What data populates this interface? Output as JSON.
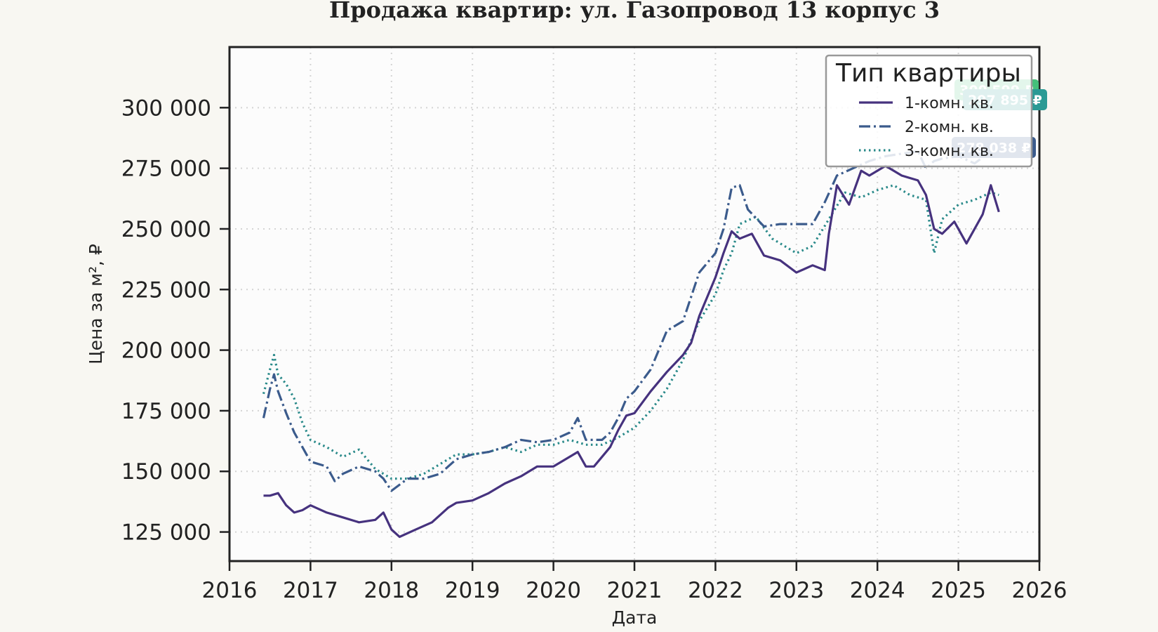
{
  "chart_data": {
    "type": "line",
    "title": "Продажа квартир: ул. Газопровод 13 корпус 3",
    "xlabel": "Дата",
    "ylabel": "Цена за м², ₽",
    "xlim": [
      2016,
      2026
    ],
    "ylim": [
      113000,
      325000
    ],
    "x_ticks": [
      2016,
      2017,
      2018,
      2019,
      2020,
      2021,
      2022,
      2023,
      2024,
      2025,
      2026
    ],
    "x_tick_labels": [
      "2016",
      "2017",
      "2018",
      "2019",
      "2020",
      "2021",
      "2022",
      "2023",
      "2024",
      "2025",
      "2026"
    ],
    "y_ticks": [
      125000,
      150000,
      175000,
      200000,
      225000,
      250000,
      275000,
      300000
    ],
    "y_tick_labels": [
      "125 000",
      "150 000",
      "175 000",
      "200 000",
      "225 000",
      "250 000",
      "275 000",
      "300 000"
    ],
    "grid": true,
    "legend": {
      "title": "Тип квартиры",
      "placement": "top-right"
    },
    "series": [
      {
        "name": "1-комн. кв.",
        "color": "#46327e",
        "style": "solid",
        "x": [
          2016.42,
          2016.5,
          2016.6,
          2016.7,
          2016.8,
          2016.9,
          2017.0,
          2017.2,
          2017.4,
          2017.6,
          2017.8,
          2017.9,
          2018.0,
          2018.1,
          2018.3,
          2018.5,
          2018.7,
          2018.8,
          2019.0,
          2019.2,
          2019.4,
          2019.6,
          2019.8,
          2020.0,
          2020.2,
          2020.3,
          2020.4,
          2020.5,
          2020.7,
          2020.8,
          2020.9,
          2021.0,
          2021.2,
          2021.4,
          2021.6,
          2021.7,
          2021.8,
          2022.0,
          2022.1,
          2022.2,
          2022.3,
          2022.45,
          2022.6,
          2022.8,
          2023.0,
          2023.2,
          2023.35,
          2023.4,
          2023.5,
          2023.65,
          2023.8,
          2023.9,
          2024.1,
          2024.3,
          2024.5,
          2024.6,
          2024.7,
          2024.8,
          2024.95,
          2025.1,
          2025.3,
          2025.4,
          2025.5
        ],
        "y": [
          140000,
          140000,
          141000,
          136000,
          133000,
          134000,
          136000,
          133000,
          131000,
          129000,
          130000,
          133000,
          126000,
          123000,
          126000,
          129000,
          135000,
          137000,
          138000,
          141000,
          145000,
          148000,
          152000,
          152000,
          156000,
          158000,
          152000,
          152000,
          160000,
          167000,
          173000,
          174000,
          183000,
          191000,
          198000,
          203000,
          214000,
          230000,
          240000,
          249000,
          246000,
          248000,
          239000,
          237000,
          232000,
          235000,
          233000,
          248000,
          268000,
          260000,
          274000,
          272000,
          276000,
          272000,
          270000,
          264000,
          250000,
          248000,
          253000,
          244000,
          256000,
          268000,
          257000
        ]
      },
      {
        "name": "2-комн. кв.",
        "color": "#3b5b8c",
        "style": "dashdot",
        "x": [
          2016.42,
          2016.5,
          2016.55,
          2016.6,
          2016.7,
          2016.8,
          2016.9,
          2017.0,
          2017.2,
          2017.3,
          2017.4,
          2017.6,
          2017.8,
          2017.9,
          2018.0,
          2018.2,
          2018.4,
          2018.6,
          2018.8,
          2019.0,
          2019.2,
          2019.4,
          2019.6,
          2019.8,
          2020.0,
          2020.2,
          2020.3,
          2020.4,
          2020.6,
          2020.7,
          2020.8,
          2020.9,
          2021.0,
          2021.2,
          2021.4,
          2021.6,
          2021.7,
          2021.8,
          2022.0,
          2022.1,
          2022.2,
          2022.3,
          2022.4,
          2022.6,
          2022.8,
          2023.0,
          2023.2,
          2023.35,
          2023.5,
          2023.7,
          2023.9,
          2024.1,
          2024.3,
          2024.5,
          2024.6,
          2024.7,
          2024.8,
          2025.0,
          2025.2,
          2025.4,
          2025.5
        ],
        "y": [
          172000,
          184000,
          190000,
          183000,
          174000,
          166000,
          160000,
          154000,
          152000,
          146000,
          149000,
          152000,
          150000,
          147000,
          142000,
          147000,
          147000,
          149000,
          155000,
          157000,
          158000,
          160000,
          163000,
          162000,
          163000,
          166000,
          172000,
          163000,
          163000,
          166000,
          172000,
          180000,
          183000,
          192000,
          208000,
          212000,
          222000,
          232000,
          240000,
          250000,
          267000,
          268000,
          258000,
          251000,
          252000,
          252000,
          252000,
          261000,
          272000,
          275000,
          278000,
          280000,
          281000,
          282000,
          275000,
          278000,
          279000,
          280000,
          277000,
          282000,
          285000
        ]
      },
      {
        "name": "3-комн. кв.",
        "color": "#2a8a8a",
        "style": "dotted",
        "x": [
          2016.42,
          2016.5,
          2016.55,
          2016.6,
          2016.7,
          2016.8,
          2016.9,
          2017.0,
          2017.2,
          2017.4,
          2017.6,
          2017.8,
          2018.0,
          2018.2,
          2018.4,
          2018.6,
          2018.8,
          2019.0,
          2019.2,
          2019.4,
          2019.6,
          2019.8,
          2020.0,
          2020.2,
          2020.4,
          2020.6,
          2020.8,
          2021.0,
          2021.2,
          2021.4,
          2021.6,
          2021.8,
          2022.0,
          2022.1,
          2022.2,
          2022.3,
          2022.5,
          2022.7,
          2023.0,
          2023.2,
          2023.4,
          2023.6,
          2023.8,
          2024.0,
          2024.2,
          2024.4,
          2024.6,
          2024.7,
          2024.8,
          2025.0,
          2025.2,
          2025.4,
          2025.5
        ],
        "y": [
          182000,
          192000,
          198000,
          190000,
          186000,
          180000,
          170000,
          163000,
          160000,
          156000,
          159000,
          151000,
          147000,
          147000,
          149000,
          153000,
          157000,
          157000,
          158000,
          160000,
          158000,
          161000,
          161000,
          163000,
          161000,
          161000,
          164000,
          168000,
          175000,
          184000,
          196000,
          212000,
          223000,
          233000,
          240000,
          252000,
          255000,
          246000,
          240000,
          243000,
          254000,
          265000,
          263000,
          266000,
          268000,
          264000,
          262000,
          240000,
          254000,
          260000,
          262000,
          265000,
          264000
        ]
      }
    ],
    "end_badges": [
      {
        "text": "300 599 ₽",
        "color": "#44c07a"
      },
      {
        "text": "297 895 ₽",
        "color": "#2a9a94"
      },
      {
        "text": "278 038 ₽",
        "color": "#3b5b8c"
      }
    ]
  }
}
